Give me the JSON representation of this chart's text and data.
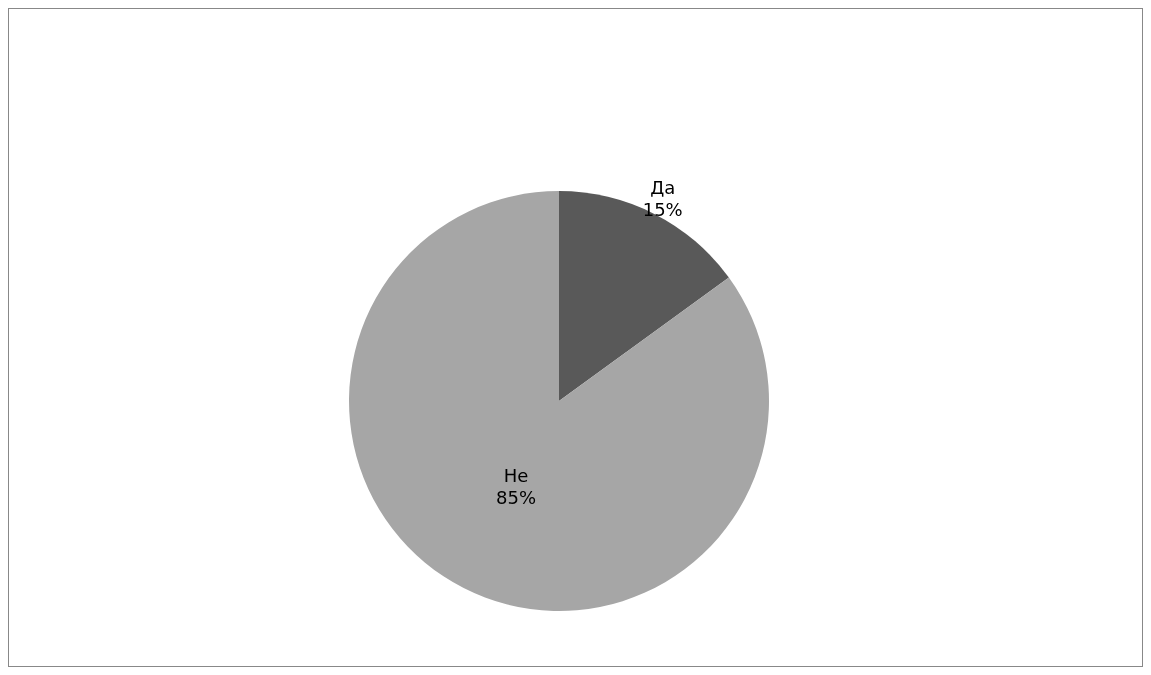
{
  "chart_data": {
    "type": "pie",
    "categories": [
      "Да",
      "Не"
    ],
    "values": [
      15,
      85
    ],
    "colors": [
      "#595959",
      "#a6a6a6"
    ],
    "value_labels": [
      "15%",
      "85%"
    ]
  }
}
